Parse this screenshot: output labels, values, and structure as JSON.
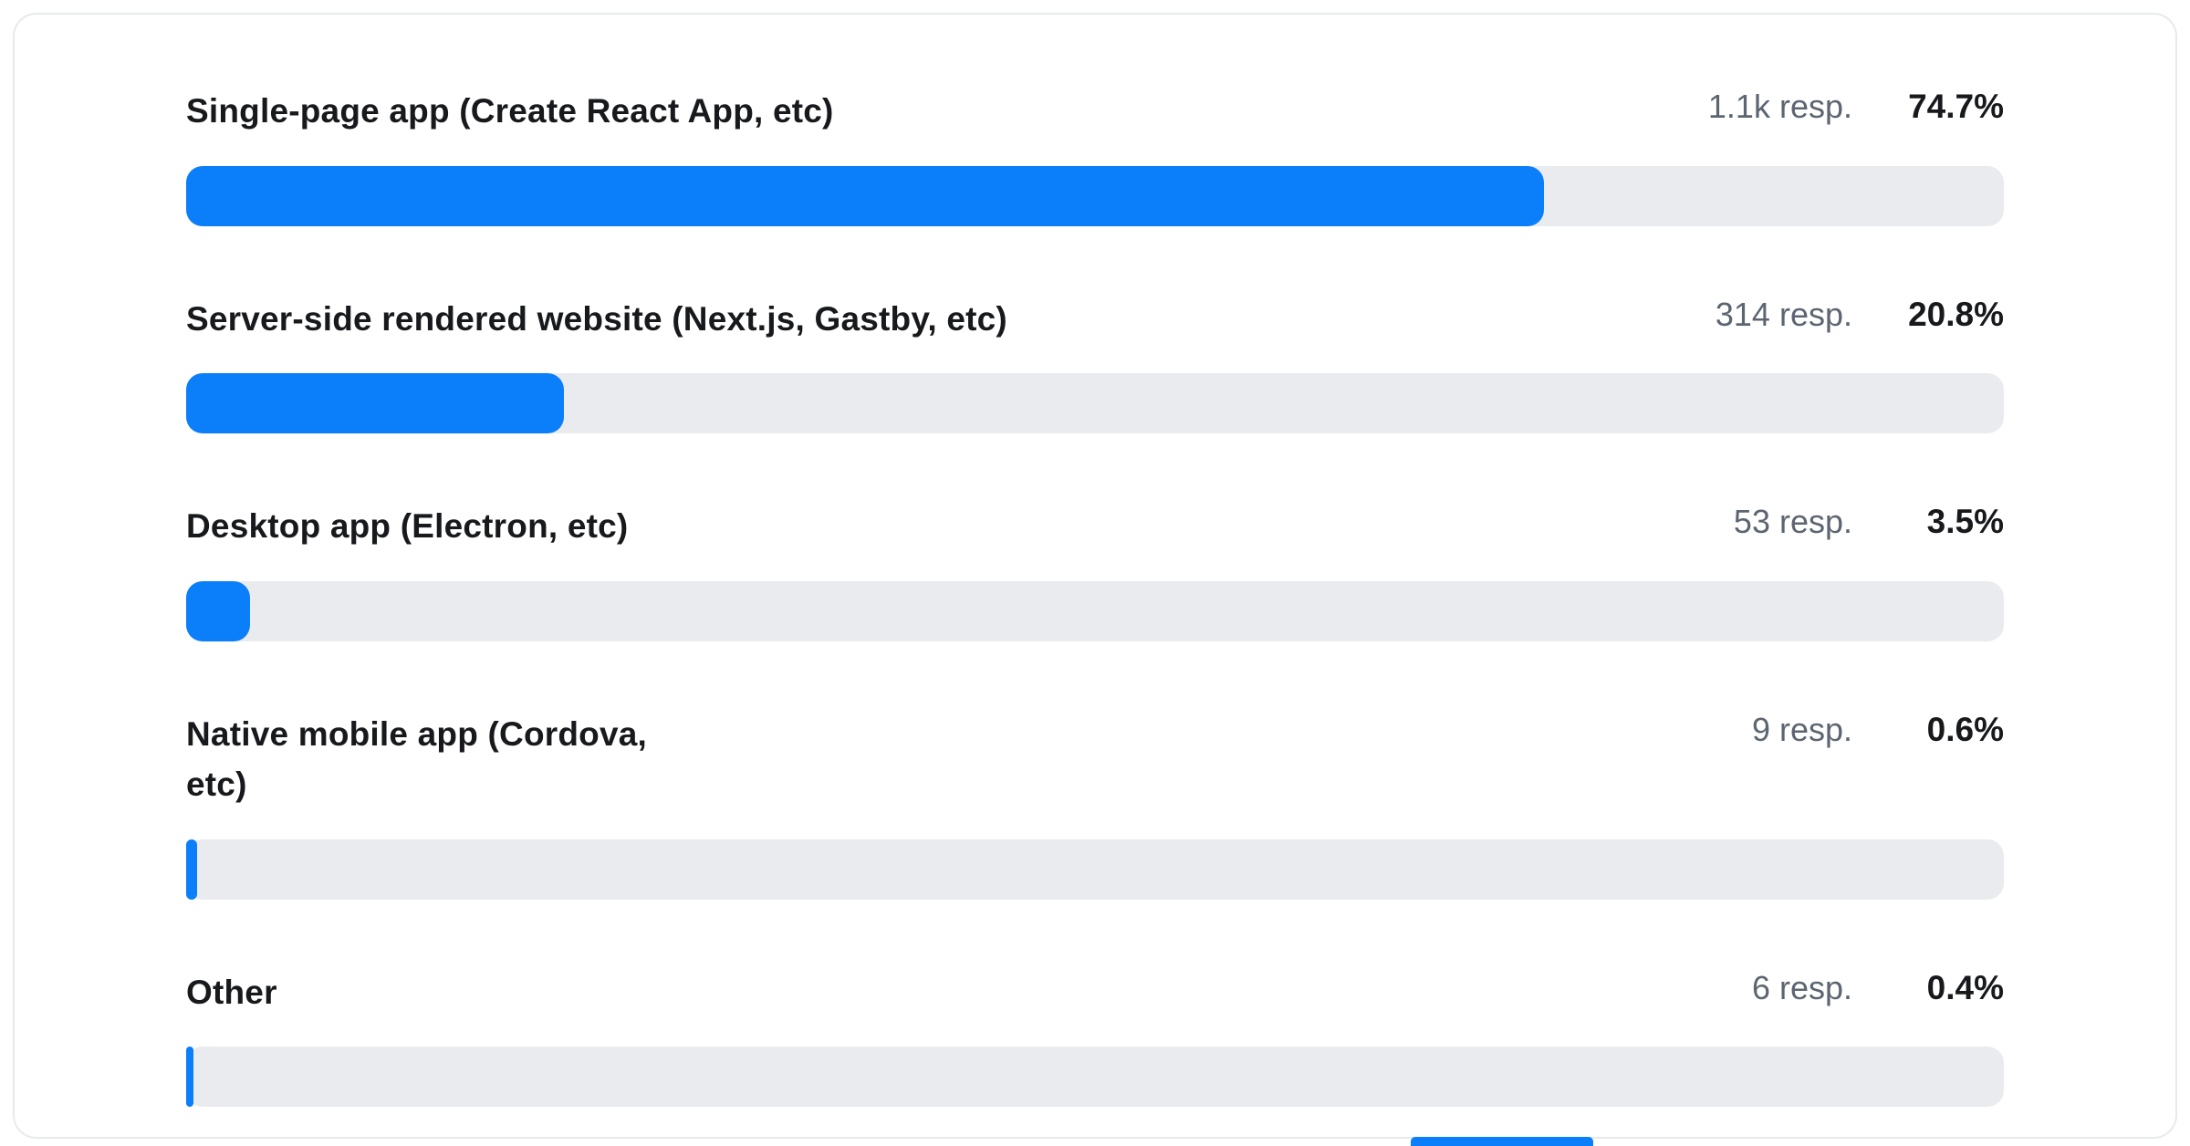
{
  "colors": {
    "bar_fill": "#0b7ef9",
    "bar_track": "#e9ebee"
  },
  "chart_data": {
    "type": "bar",
    "orientation": "horizontal",
    "title": "",
    "xlabel": "",
    "ylabel": "",
    "xlim": [
      0,
      100
    ],
    "unit": "%",
    "categories": [
      "Single-page app (Create React App, etc)",
      "Server-side rendered website (Next.js, Gastby, etc)",
      "Desktop app (Electron, etc)",
      "Native mobile app (Cordova, etc)",
      "Other"
    ],
    "values": [
      74.7,
      20.8,
      3.5,
      0.6,
      0.4
    ],
    "items": [
      {
        "label": "Single-page app (Create React App, etc)",
        "responses": "1.1k resp.",
        "percent_label": "74.7%",
        "value": 74.7
      },
      {
        "label": "Server-side rendered website (Next.js, Gastby, etc)",
        "responses": "314 resp.",
        "percent_label": "20.8%",
        "value": 20.8
      },
      {
        "label": "Desktop app (Electron, etc)",
        "responses": "53 resp.",
        "percent_label": "3.5%",
        "value": 3.5
      },
      {
        "label": "Native mobile app (Cordova,\netc)",
        "responses": "9 resp.",
        "percent_label": "0.6%",
        "value": 0.6
      },
      {
        "label": "Other",
        "responses": "6 resp.",
        "percent_label": "0.4%",
        "value": 0.4
      }
    ]
  }
}
